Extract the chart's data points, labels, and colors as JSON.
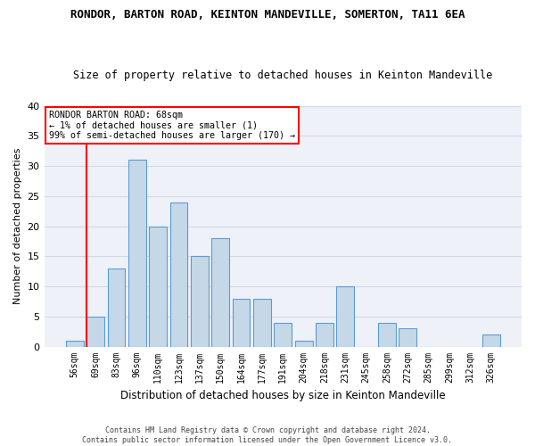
{
  "title": "RONDOR, BARTON ROAD, KEINTON MANDEVILLE, SOMERTON, TA11 6EA",
  "subtitle": "Size of property relative to detached houses in Keinton Mandeville",
  "xlabel": "Distribution of detached houses by size in Keinton Mandeville",
  "ylabel": "Number of detached properties",
  "categories": [
    "56sqm",
    "69sqm",
    "83sqm",
    "96sqm",
    "110sqm",
    "123sqm",
    "137sqm",
    "150sqm",
    "164sqm",
    "177sqm",
    "191sqm",
    "204sqm",
    "218sqm",
    "231sqm",
    "245sqm",
    "258sqm",
    "272sqm",
    "285sqm",
    "299sqm",
    "312sqm",
    "326sqm"
  ],
  "values": [
    1,
    5,
    13,
    31,
    20,
    24,
    15,
    18,
    8,
    8,
    4,
    1,
    4,
    10,
    0,
    4,
    3,
    0,
    0,
    0,
    2
  ],
  "bar_color": "#c5d8e8",
  "bar_edge_color": "#5b9bd5",
  "grid_color": "#d0d8e8",
  "bg_color": "#eef2f8",
  "annotation_text_line1": "RONDOR BARTON ROAD: 68sqm",
  "annotation_text_line2": "← 1% of detached houses are smaller (1)",
  "annotation_text_line3": "99% of semi-detached houses are larger (170) →",
  "annotation_box_color": "white",
  "annotation_line_color": "red",
  "footer1": "Contains HM Land Registry data © Crown copyright and database right 2024.",
  "footer2": "Contains public sector information licensed under the Open Government Licence v3.0.",
  "ylim": [
    0,
    40
  ],
  "yticks": [
    0,
    5,
    10,
    15,
    20,
    25,
    30,
    35,
    40
  ]
}
